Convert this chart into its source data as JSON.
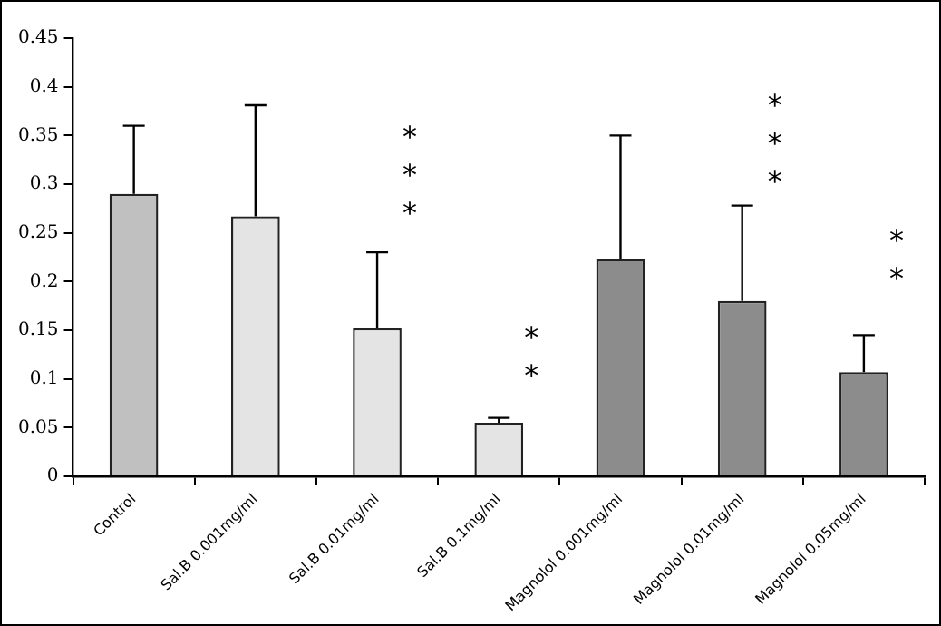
{
  "chart_data": {
    "type": "bar",
    "categories": [
      "Control",
      "Sal.B 0.001mg/ml",
      "Sal.B 0.01mg/ml",
      "Sal.B 0.1mg/ml",
      "Magnolol 0.001mg/ml",
      "Magnolol 0.01mg/ml",
      "Magnolol 0.05mg/ml"
    ],
    "values": [
      0.29,
      0.267,
      0.152,
      0.055,
      0.223,
      0.18,
      0.107
    ],
    "errors": [
      [
        0.29,
        0.36
      ],
      [
        0.267,
        0.381
      ],
      [
        0.152,
        0.23
      ],
      [
        0.055,
        0.06
      ],
      [
        0.223,
        0.35
      ],
      [
        0.18,
        0.278
      ],
      [
        0.107,
        0.145
      ]
    ],
    "colors": [
      "#c0c0c0",
      "#e4e4e4",
      "#e4e4e4",
      "#e4e4e4",
      "#8c8c8c",
      "#8c8c8c",
      "#8c8c8c"
    ],
    "ylim": [
      0,
      0.45
    ],
    "yticks": [
      0,
      0.05,
      0.1,
      0.15,
      0.2,
      0.25,
      0.3,
      0.35,
      0.4,
      0.45
    ],
    "grid": false,
    "legend": false,
    "annotations": [
      "***",
      "**",
      "***",
      "**"
    ]
  }
}
